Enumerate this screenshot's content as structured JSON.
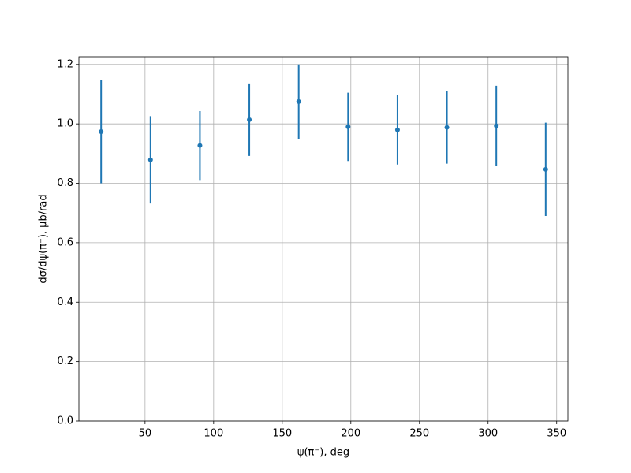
{
  "chart_data": {
    "type": "errorbar",
    "xlabel": "ψ(π⁻), deg",
    "ylabel": "dσ/dψ(π⁻), μb/rad",
    "x": [
      18,
      54,
      90,
      126,
      162,
      198,
      234,
      270,
      306,
      342
    ],
    "series": [
      {
        "color": "#1f77b4",
        "values": [
          0.974,
          0.879,
          0.927,
          1.014,
          1.075,
          0.99,
          0.98,
          0.988,
          0.993,
          0.847
        ],
        "errors": [
          0.174,
          0.147,
          0.116,
          0.122,
          0.125,
          0.115,
          0.117,
          0.122,
          0.135,
          0.157
        ]
      }
    ],
    "xlim": [
      1.8,
      358.2
    ],
    "xticks": [
      50,
      100,
      150,
      200,
      250,
      300,
      350
    ],
    "ylim": [
      0,
      1.226
    ],
    "yticks": [
      {
        "value": 0,
        "label": "0.0"
      },
      {
        "value": 0.2,
        "label": "0.2"
      },
      {
        "value": 0.4,
        "label": "0.4"
      },
      {
        "value": 0.6,
        "label": "0.6"
      },
      {
        "value": 0.8,
        "label": "0.8"
      },
      {
        "value": 1.0,
        "label": "1.0"
      },
      {
        "value": 1.2,
        "label": "1.2"
      }
    ],
    "grid": true
  }
}
